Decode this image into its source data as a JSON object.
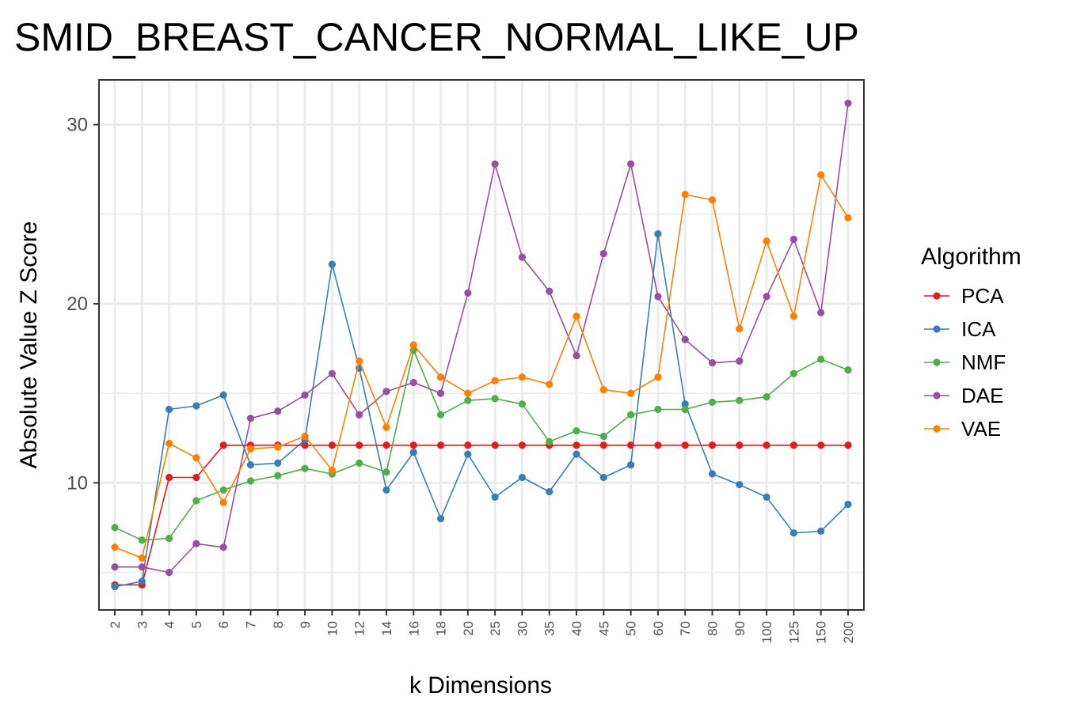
{
  "chart_data": {
    "type": "line",
    "title": "SMID_BREAST_CANCER_NORMAL_LIKE_UP",
    "xlabel": "k Dimensions",
    "ylabel": "Absolute Value Z Score",
    "categories": [
      "2",
      "3",
      "4",
      "5",
      "6",
      "7",
      "8",
      "9",
      "10",
      "12",
      "14",
      "16",
      "18",
      "20",
      "25",
      "30",
      "35",
      "40",
      "45",
      "50",
      "60",
      "70",
      "80",
      "90",
      "100",
      "125",
      "150",
      "200"
    ],
    "ylim": [
      2.9,
      32.5
    ],
    "yticks": [
      10,
      20,
      30
    ],
    "grid": true,
    "legend": {
      "title": "Algorithm",
      "position": "right"
    },
    "series": [
      {
        "name": "PCA",
        "color": "#e41a1c",
        "values": [
          4.3,
          4.3,
          10.3,
          10.3,
          12.1,
          12.1,
          12.1,
          12.1,
          12.1,
          12.1,
          12.1,
          12.1,
          12.1,
          12.1,
          12.1,
          12.1,
          12.1,
          12.1,
          12.1,
          12.1,
          12.1,
          12.1,
          12.1,
          12.1,
          12.1,
          12.1,
          12.1,
          12.1
        ]
      },
      {
        "name": "ICA",
        "color": "#377eb8",
        "values": [
          4.2,
          4.5,
          14.1,
          14.3,
          14.9,
          11.0,
          11.1,
          12.4,
          22.2,
          16.4,
          9.6,
          11.7,
          8.0,
          11.6,
          9.2,
          10.3,
          9.5,
          11.6,
          10.3,
          11.0,
          23.9,
          14.4,
          10.5,
          9.9,
          9.2,
          7.2,
          7.3,
          8.8
        ]
      },
      {
        "name": "NMF",
        "color": "#4daf4a",
        "values": [
          7.5,
          6.8,
          6.9,
          9.0,
          9.6,
          10.1,
          10.4,
          10.8,
          10.5,
          11.1,
          10.6,
          17.4,
          13.8,
          14.6,
          14.7,
          14.4,
          12.3,
          12.9,
          12.6,
          13.8,
          14.1,
          14.1,
          14.5,
          14.6,
          14.8,
          16.1,
          16.9,
          16.3
        ]
      },
      {
        "name": "DAE",
        "color": "#984ea3",
        "values": [
          5.3,
          5.3,
          5.0,
          6.6,
          6.4,
          13.6,
          14.0,
          14.9,
          16.1,
          13.8,
          15.1,
          15.6,
          15.0,
          20.6,
          27.8,
          22.6,
          20.7,
          17.1,
          22.8,
          27.8,
          20.4,
          18.0,
          16.7,
          16.8,
          20.4,
          23.6,
          19.5,
          31.2
        ]
      },
      {
        "name": "VAE",
        "color": "#ff7f00",
        "values": [
          6.4,
          5.8,
          12.2,
          11.4,
          8.9,
          11.9,
          12.0,
          12.6,
          10.7,
          16.8,
          13.1,
          17.7,
          15.9,
          15.0,
          15.7,
          15.9,
          15.5,
          19.3,
          15.2,
          15.0,
          15.9,
          26.1,
          25.8,
          18.6,
          23.5,
          19.3,
          27.2,
          24.8
        ]
      }
    ]
  }
}
